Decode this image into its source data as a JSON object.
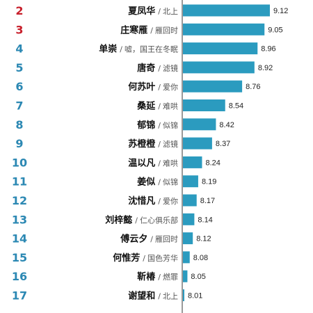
{
  "colors": {
    "bar": "#2b9bbf",
    "rank_top": "#c8202c",
    "rank_default": "#2b88b3",
    "axis": "#333333"
  },
  "chart_data": {
    "type": "bar",
    "orientation": "horizontal",
    "xlim": [
      7.5,
      9.2
    ],
    "separator": "/",
    "rows": [
      {
        "rank": "2",
        "name": "夏凤华",
        "drama": "北上",
        "value": 9.12,
        "label": "9.12"
      },
      {
        "rank": "3",
        "name": "庄寒雁",
        "drama": "雁回时",
        "value": 9.05,
        "label": "9.05"
      },
      {
        "rank": "4",
        "name": "单崇",
        "drama": "嘘，国王在冬眠",
        "value": 8.96,
        "label": "8.96"
      },
      {
        "rank": "5",
        "name": "唐奇",
        "drama": "滤镜",
        "value": 8.92,
        "label": "8.92"
      },
      {
        "rank": "6",
        "name": "何苏叶",
        "drama": "爱你",
        "value": 8.76,
        "label": "8.76"
      },
      {
        "rank": "7",
        "name": "桑延",
        "drama": "难哄",
        "value": 8.54,
        "label": "8.54"
      },
      {
        "rank": "8",
        "name": "郁锦",
        "drama": "似锦",
        "value": 8.42,
        "label": "8.42"
      },
      {
        "rank": "9",
        "name": "苏橙橙",
        "drama": "滤镜",
        "value": 8.37,
        "label": "8.37"
      },
      {
        "rank": "10",
        "name": "温以凡",
        "drama": "难哄",
        "value": 8.24,
        "label": "8.24"
      },
      {
        "rank": "11",
        "name": "姜似",
        "drama": "似锦",
        "value": 8.19,
        "label": "8.19"
      },
      {
        "rank": "12",
        "name": "沈惜凡",
        "drama": "爱你",
        "value": 8.17,
        "label": "8.17"
      },
      {
        "rank": "13",
        "name": "刘梓懿",
        "drama": "仁心俱乐部",
        "value": 8.14,
        "label": "8.14"
      },
      {
        "rank": "14",
        "name": "傅云夕",
        "drama": "雁回时",
        "value": 8.12,
        "label": "8.12"
      },
      {
        "rank": "15",
        "name": "何惟芳",
        "drama": "国色芳华",
        "value": 8.08,
        "label": "8.08"
      },
      {
        "rank": "16",
        "name": "靳椿",
        "drama": "燃罪",
        "value": 8.05,
        "label": "8.05"
      },
      {
        "rank": "17",
        "name": "谢望和",
        "drama": "北上",
        "value": 8.01,
        "label": "8.01"
      }
    ]
  }
}
